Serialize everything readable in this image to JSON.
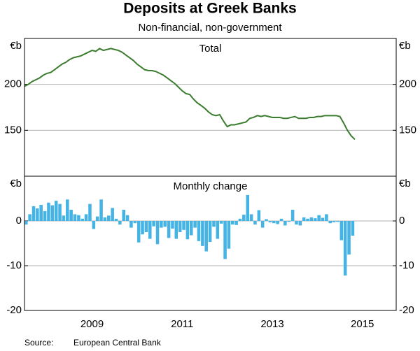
{
  "title": "Deposits at Greek Banks",
  "subtitle": "Non-financial, non-government",
  "source_label": "Source:",
  "source": "European Central Bank",
  "chart_data": [
    {
      "type": "line",
      "title": "Total",
      "unit": "€b",
      "color": "#3b7d2e",
      "xlim": [
        2008,
        2016.25
      ],
      "ylim": [
        100,
        250
      ],
      "yticks": [
        150,
        200
      ],
      "grid": true,
      "x": [
        2008,
        2008.083,
        2008.167,
        2008.25,
        2008.333,
        2008.417,
        2008.5,
        2008.583,
        2008.667,
        2008.75,
        2008.833,
        2008.917,
        2009,
        2009.083,
        2009.167,
        2009.25,
        2009.333,
        2009.417,
        2009.5,
        2009.583,
        2009.667,
        2009.75,
        2009.833,
        2009.917,
        2010,
        2010.083,
        2010.167,
        2010.25,
        2010.333,
        2010.417,
        2010.5,
        2010.583,
        2010.667,
        2010.75,
        2010.833,
        2010.917,
        2011,
        2011.083,
        2011.167,
        2011.25,
        2011.333,
        2011.417,
        2011.5,
        2011.583,
        2011.667,
        2011.75,
        2011.833,
        2011.917,
        2012,
        2012.083,
        2012.167,
        2012.25,
        2012.333,
        2012.417,
        2012.5,
        2012.583,
        2012.667,
        2012.75,
        2012.833,
        2012.917,
        2013,
        2013.083,
        2013.167,
        2013.25,
        2013.333,
        2013.417,
        2013.5,
        2013.583,
        2013.667,
        2013.75,
        2013.833,
        2013.917,
        2014,
        2014.083,
        2014.167,
        2014.25,
        2014.333,
        2014.417,
        2014.5,
        2014.583,
        2014.667,
        2014.75,
        2014.833,
        2014.917,
        2015,
        2015.083,
        2015.167,
        2015.25,
        2015.333
      ],
      "values": [
        198,
        200,
        203,
        205,
        207,
        210,
        212,
        213,
        216,
        219,
        222,
        224,
        227,
        229,
        230,
        231,
        233,
        235,
        237,
        236,
        239,
        237,
        238,
        239,
        238,
        237,
        235,
        232,
        229,
        226,
        222,
        219,
        216,
        215,
        215,
        214,
        212,
        210,
        207,
        204,
        201,
        197,
        193,
        190,
        189,
        184,
        180,
        177,
        174,
        170,
        167,
        166,
        167,
        160,
        154,
        156,
        156,
        157,
        158,
        159,
        163,
        164,
        166,
        165,
        166,
        165,
        164,
        164,
        164,
        163,
        163,
        164,
        165,
        163,
        163,
        163,
        164,
        164,
        165,
        165,
        166,
        166,
        166,
        166,
        165,
        158,
        150,
        144,
        140
      ]
    },
    {
      "type": "bar",
      "title": "Monthly change",
      "unit": "€b",
      "color": "#45b3e3",
      "xlim": [
        2008,
        2016.25
      ],
      "xticks": [
        {
          "value": 2009.5,
          "label": "2009"
        },
        {
          "value": 2011.5,
          "label": "2011"
        },
        {
          "value": 2013.5,
          "label": "2013"
        },
        {
          "value": 2015.5,
          "label": "2015"
        }
      ],
      "ylim": [
        -20,
        10
      ],
      "yticks": [
        -20,
        -10,
        0
      ],
      "grid": true,
      "x": [
        2008,
        2008.083,
        2008.167,
        2008.25,
        2008.333,
        2008.417,
        2008.5,
        2008.583,
        2008.667,
        2008.75,
        2008.833,
        2008.917,
        2009,
        2009.083,
        2009.167,
        2009.25,
        2009.333,
        2009.417,
        2009.5,
        2009.583,
        2009.667,
        2009.75,
        2009.833,
        2009.917,
        2010,
        2010.083,
        2010.167,
        2010.25,
        2010.333,
        2010.417,
        2010.5,
        2010.583,
        2010.667,
        2010.75,
        2010.833,
        2010.917,
        2011,
        2011.083,
        2011.167,
        2011.25,
        2011.333,
        2011.417,
        2011.5,
        2011.583,
        2011.667,
        2011.75,
        2011.833,
        2011.917,
        2012,
        2012.083,
        2012.167,
        2012.25,
        2012.333,
        2012.417,
        2012.5,
        2012.583,
        2012.667,
        2012.75,
        2012.833,
        2012.917,
        2013,
        2013.083,
        2013.167,
        2013.25,
        2013.333,
        2013.417,
        2013.5,
        2013.583,
        2013.667,
        2013.75,
        2013.833,
        2013.917,
        2014,
        2014.083,
        2014.167,
        2014.25,
        2014.333,
        2014.417,
        2014.5,
        2014.583,
        2014.667,
        2014.75,
        2014.833,
        2014.917,
        2015,
        2015.083,
        2015.167,
        2015.25
      ],
      "values": [
        -0.8,
        1.5,
        3.3,
        2.8,
        3.6,
        2.2,
        4.1,
        3.5,
        4.5,
        3.8,
        1.2,
        4.8,
        2.5,
        1.5,
        1.3,
        0.5,
        1.5,
        3.8,
        -1.8,
        1,
        4.8,
        0.8,
        1.2,
        2.9,
        0.5,
        -0.8,
        2.5,
        1.3,
        -1.5,
        -0.5,
        -4.8,
        -3,
        -2.5,
        -4,
        -1.2,
        -5.2,
        -1.5,
        -1.3,
        -3.8,
        -1.7,
        -4,
        -2.5,
        -2,
        -4.1,
        -3.2,
        -1.5,
        -4.5,
        -5.6,
        -6.8,
        -4.7,
        -1.3,
        -4,
        -0.6,
        -8.5,
        -6.2,
        -0.8,
        -0.9,
        0.5,
        1.4,
        5.8,
        1.5,
        -0.8,
        2.4,
        -1.5,
        0.4,
        -0.3,
        -0.5,
        -0.7,
        0.5,
        -1,
        -0.2,
        2.5,
        -0.8,
        -1,
        0.8,
        0.5,
        0.8,
        0.6,
        1.3,
        0.7,
        1.5,
        -0.5,
        -0.3,
        -0.2,
        -4.3,
        -12.2,
        -7.5,
        -3.3
      ]
    }
  ]
}
